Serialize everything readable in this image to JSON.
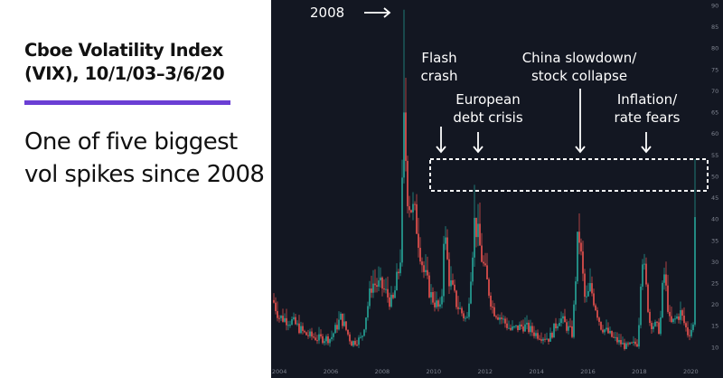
{
  "title": "Cboe Volatility Index (VIX), 10/1/03–3/6/20",
  "subtitle": "One of five biggest vol spikes since 2008",
  "colors": {
    "background": "#131722",
    "up_candle": "#26a69a",
    "down_candle": "#ef5350",
    "accent_rule": "#6b3fd4",
    "annotation": "#ffffff"
  },
  "annotations": [
    {
      "id": "a2008",
      "text": "2008"
    },
    {
      "id": "flash",
      "text": "Flash crash"
    },
    {
      "id": "euro",
      "text": "European debt crisis"
    },
    {
      "id": "china",
      "text": "China slowdown/ stock collapse"
    },
    {
      "id": "infl",
      "text": "Inflation/ rate fears"
    }
  ],
  "chart_data": {
    "type": "candlestick",
    "x_ticks": [
      "2004",
      "2006",
      "2008",
      "2010",
      "2012",
      "2014",
      "2016",
      "2018",
      "2020"
    ],
    "y_ticks": [
      10,
      15,
      20,
      25,
      30,
      35,
      40,
      45,
      50,
      55,
      60,
      65,
      70,
      75,
      80,
      85,
      90
    ],
    "ylim": [
      7,
      90
    ],
    "xlim": [
      2003.75,
      2020.2
    ],
    "highlight_band": [
      48,
      55
    ],
    "up_color": "#26a69a",
    "down_color": "#ef5350",
    "anchors": [
      [
        2003.75,
        21
      ],
      [
        2004.0,
        17
      ],
      [
        2004.5,
        16
      ],
      [
        2005.0,
        13
      ],
      [
        2005.5,
        12
      ],
      [
        2006.0,
        12
      ],
      [
        2006.4,
        17
      ],
      [
        2006.8,
        11
      ],
      [
        2007.2,
        12
      ],
      [
        2007.6,
        25
      ],
      [
        2008.0,
        24
      ],
      [
        2008.4,
        20
      ],
      [
        2008.7,
        30
      ],
      [
        2008.85,
        62
      ],
      [
        2009.0,
        45
      ],
      [
        2009.3,
        40
      ],
      [
        2009.6,
        28
      ],
      [
        2009.9,
        22
      ],
      [
        2010.3,
        18
      ],
      [
        2010.4,
        38
      ],
      [
        2010.6,
        26
      ],
      [
        2010.9,
        20
      ],
      [
        2011.3,
        16
      ],
      [
        2011.6,
        40
      ],
      [
        2011.9,
        30
      ],
      [
        2012.3,
        19
      ],
      [
        2012.6,
        17
      ],
      [
        2013.0,
        14
      ],
      [
        2013.5,
        15
      ],
      [
        2014.0,
        13
      ],
      [
        2014.5,
        12
      ],
      [
        2014.9,
        17
      ],
      [
        2015.4,
        13
      ],
      [
        2015.63,
        38
      ],
      [
        2015.9,
        20
      ],
      [
        2016.1,
        24
      ],
      [
        2016.5,
        15
      ],
      [
        2017.0,
        12
      ],
      [
        2017.5,
        10
      ],
      [
        2017.95,
        11
      ],
      [
        2018.1,
        33
      ],
      [
        2018.4,
        16
      ],
      [
        2018.8,
        14
      ],
      [
        2018.95,
        28
      ],
      [
        2019.2,
        15
      ],
      [
        2019.6,
        18
      ],
      [
        2019.9,
        13
      ],
      [
        2020.1,
        15
      ],
      [
        2020.15,
        41
      ],
      [
        2020.18,
        45
      ]
    ],
    "peaks": [
      [
        2008.85,
        89
      ],
      [
        2010.35,
        48
      ],
      [
        2011.6,
        48
      ],
      [
        2015.63,
        53
      ],
      [
        2018.1,
        50
      ],
      [
        2020.18,
        54
      ]
    ]
  }
}
